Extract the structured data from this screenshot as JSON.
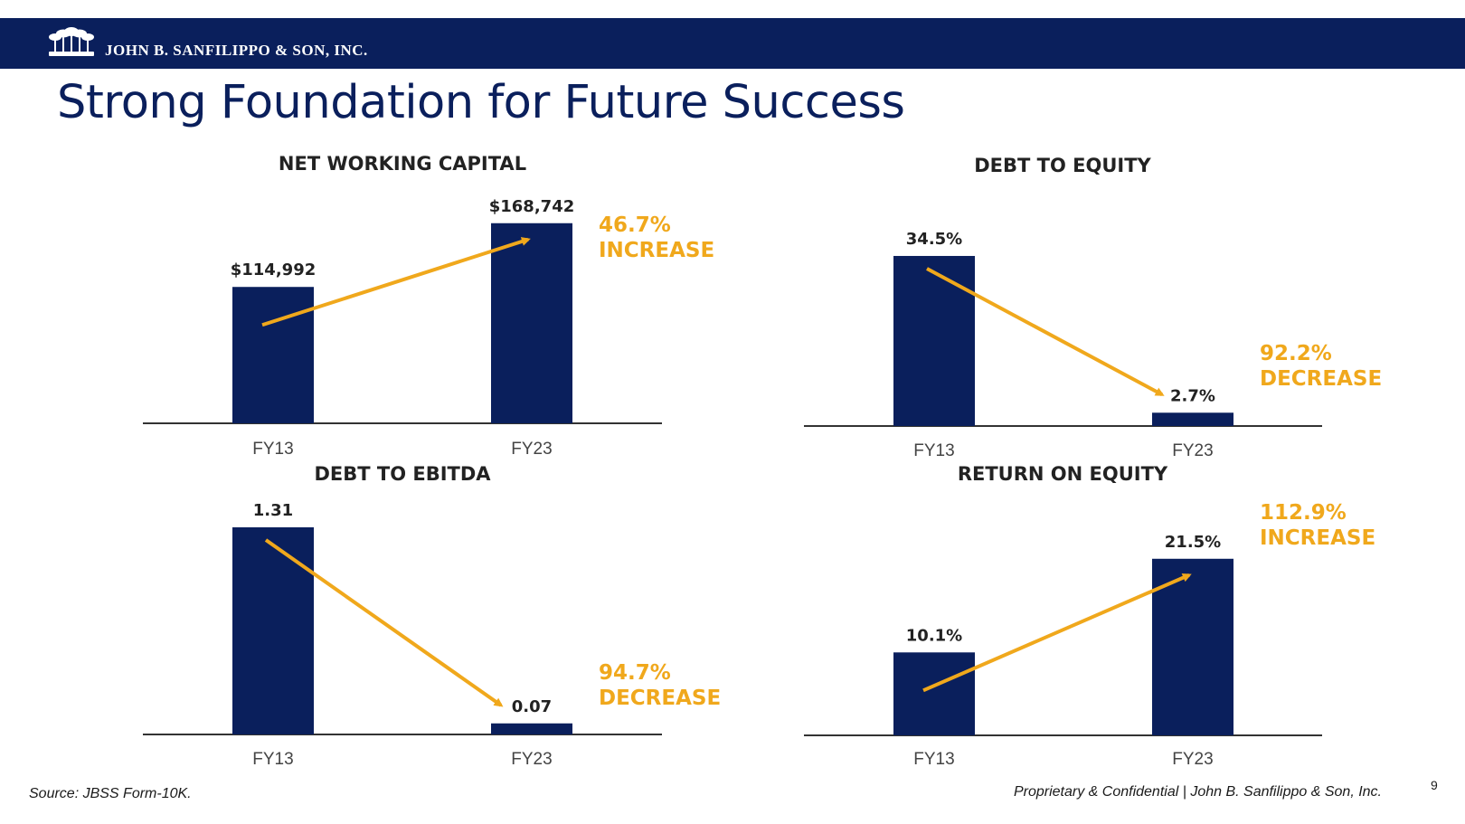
{
  "header": {
    "company": "JOHN B. SANFILIPPO & SON, INC.",
    "logo_icon": "palm-trees-logo-icon"
  },
  "page_title": "Strong Foundation for Future Success",
  "colors": {
    "navy": "#0a1f5c",
    "gold": "#f0a81c",
    "axis": "#333333"
  },
  "chart_data": [
    {
      "type": "bar",
      "title": "NET WORKING CAPITAL",
      "categories": [
        "FY13",
        "FY23"
      ],
      "values": [
        114992,
        168742
      ],
      "value_labels": [
        "$114,992",
        "$168,742"
      ],
      "ylim": [
        0,
        180000
      ],
      "change_pct": "46.7%",
      "change_word": "INCREASE",
      "trend": "up",
      "grid": false
    },
    {
      "type": "bar",
      "title": "DEBT TO EQUITY",
      "categories": [
        "FY13",
        "FY23"
      ],
      "values": [
        34.5,
        2.7
      ],
      "value_labels": [
        "34.5%",
        "2.7%"
      ],
      "ylim": [
        0,
        40
      ],
      "change_pct": "92.2%",
      "change_word": "DECREASE",
      "trend": "down",
      "grid": false
    },
    {
      "type": "bar",
      "title": "DEBT TO EBITDA",
      "categories": [
        "FY13",
        "FY23"
      ],
      "values": [
        1.31,
        0.07
      ],
      "value_labels": [
        "1.31",
        "0.07"
      ],
      "ylim": [
        0,
        1.35
      ],
      "change_pct": "94.7%",
      "change_word": "DECREASE",
      "trend": "down",
      "grid": false
    },
    {
      "type": "bar",
      "title": "RETURN ON EQUITY",
      "categories": [
        "FY13",
        "FY23"
      ],
      "values": [
        10.1,
        21.5
      ],
      "value_labels": [
        "10.1%",
        "21.5%"
      ],
      "ylim": [
        0,
        25
      ],
      "change_pct": "112.9%",
      "change_word": "INCREASE",
      "trend": "up",
      "grid": false
    }
  ],
  "footer": {
    "source": "Source: JBSS Form-10K.",
    "confidential": "Proprietary & Confidential | John B. Sanfilippo & Son, Inc.",
    "page_number": "9"
  }
}
